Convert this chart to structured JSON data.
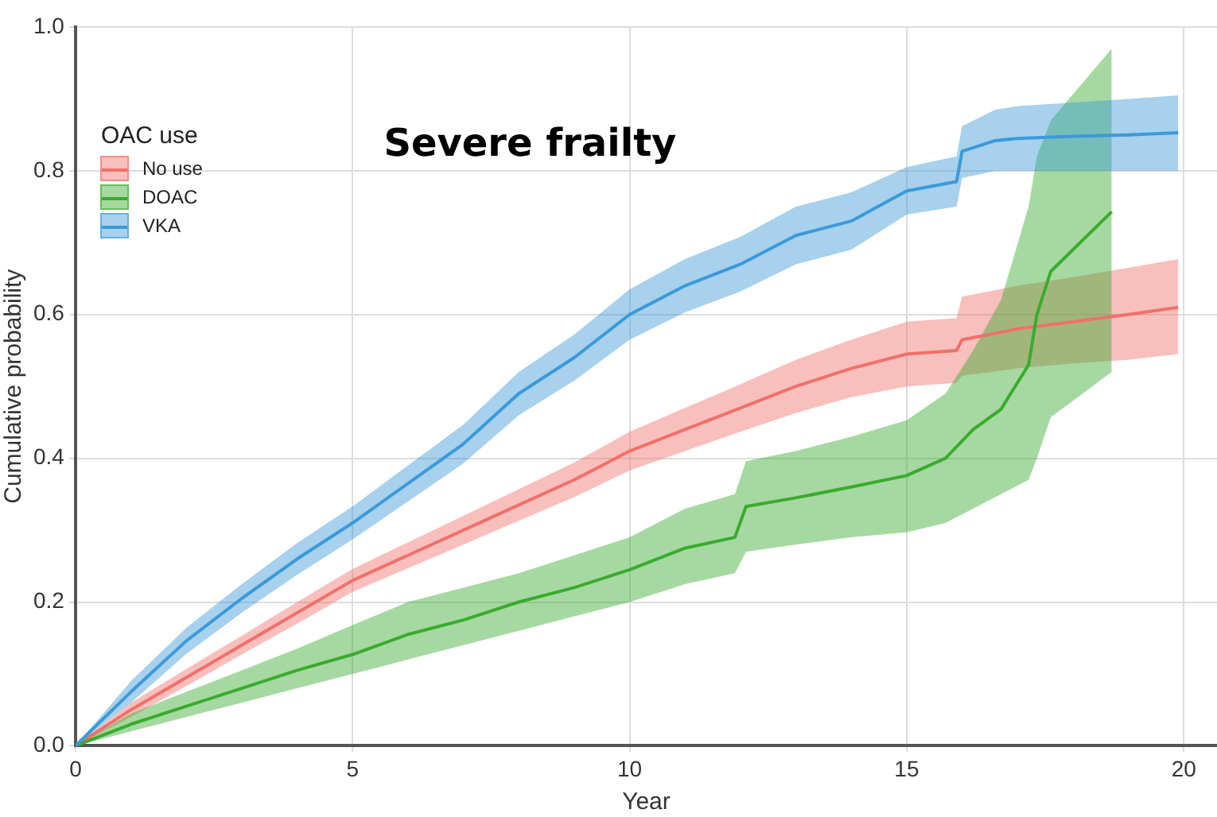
{
  "chart_data": {
    "type": "line",
    "xlabel": "Year",
    "ylabel": "Cumulative probability",
    "legend_title": "OAC use",
    "legend": "top left",
    "grid": true,
    "marker": "none",
    "line_style": "solid",
    "xlim": [
      0,
      20.6
    ],
    "xticks": [
      0,
      5,
      10,
      15,
      20
    ],
    "ylim": [
      0,
      1.0
    ],
    "yticks": [
      {
        "value": 0,
        "label": "0.0"
      },
      0.2,
      0.4,
      0.6,
      0.8,
      {
        "value": 1,
        "label": "1.0"
      }
    ],
    "annotations": [
      "Severe frailty"
    ],
    "series": [
      {
        "name": "No use",
        "color": "#f0706a",
        "x": [
          0,
          1,
          2,
          3,
          4,
          5,
          6,
          7,
          8,
          9,
          10,
          11,
          12,
          13,
          14,
          15,
          15.9,
          16,
          17,
          18,
          19,
          19.9
        ],
        "values": [
          0,
          0.05,
          0.095,
          0.14,
          0.185,
          0.23,
          0.265,
          0.3,
          0.335,
          0.37,
          0.41,
          0.44,
          0.47,
          0.5,
          0.525,
          0.545,
          0.55,
          0.565,
          0.58,
          0.59,
          0.6,
          0.61
        ],
        "lower": [
          0,
          0.04,
          0.083,
          0.127,
          0.17,
          0.214,
          0.247,
          0.28,
          0.313,
          0.346,
          0.383,
          0.41,
          0.437,
          0.463,
          0.485,
          0.5,
          0.505,
          0.515,
          0.525,
          0.532,
          0.537,
          0.545
        ],
        "upper": [
          0,
          0.06,
          0.107,
          0.153,
          0.2,
          0.246,
          0.283,
          0.32,
          0.357,
          0.394,
          0.437,
          0.47,
          0.503,
          0.537,
          0.565,
          0.59,
          0.595,
          0.625,
          0.64,
          0.652,
          0.665,
          0.677
        ]
      },
      {
        "name": "DOAC",
        "color": "#3aab2e",
        "x": [
          0,
          1,
          2,
          3,
          4,
          5,
          6,
          7,
          8,
          9,
          10,
          11,
          11.9,
          12.1,
          13,
          14,
          15,
          15.7,
          16.2,
          16.7,
          17.2,
          17.35,
          17.6,
          18.7
        ],
        "values": [
          0,
          0.03,
          0.055,
          0.08,
          0.105,
          0.127,
          0.155,
          0.175,
          0.2,
          0.22,
          0.245,
          0.275,
          0.29,
          0.333,
          0.345,
          0.36,
          0.376,
          0.4,
          0.44,
          0.468,
          0.53,
          0.6,
          0.66,
          0.743
        ],
        "lower": [
          0,
          0.02,
          0.04,
          0.06,
          0.08,
          0.1,
          0.12,
          0.14,
          0.16,
          0.18,
          0.2,
          0.225,
          0.24,
          0.27,
          0.28,
          0.29,
          0.297,
          0.31,
          0.33,
          0.35,
          0.37,
          0.4,
          0.457,
          0.52
        ],
        "upper": [
          0,
          0.045,
          0.075,
          0.105,
          0.135,
          0.168,
          0.2,
          0.22,
          0.24,
          0.265,
          0.29,
          0.33,
          0.35,
          0.396,
          0.41,
          0.43,
          0.453,
          0.49,
          0.55,
          0.62,
          0.75,
          0.82,
          0.87,
          0.97
        ]
      },
      {
        "name": "VKA",
        "color": "#3b9ad8",
        "x": [
          0,
          1,
          2,
          3,
          4,
          5,
          6,
          7,
          8,
          9,
          10,
          11,
          12,
          13,
          14,
          15,
          15.9,
          16,
          16.6,
          17,
          18,
          19,
          19.9
        ],
        "values": [
          0,
          0.075,
          0.146,
          0.205,
          0.26,
          0.31,
          0.365,
          0.42,
          0.49,
          0.54,
          0.6,
          0.64,
          0.67,
          0.71,
          0.73,
          0.772,
          0.785,
          0.827,
          0.842,
          0.845,
          0.848,
          0.85,
          0.853
        ],
        "lower": [
          0,
          0.06,
          0.128,
          0.185,
          0.238,
          0.287,
          0.34,
          0.393,
          0.46,
          0.508,
          0.565,
          0.603,
          0.632,
          0.67,
          0.69,
          0.739,
          0.75,
          0.79,
          0.8,
          0.8,
          0.8,
          0.8,
          0.8
        ],
        "upper": [
          0,
          0.09,
          0.164,
          0.225,
          0.282,
          0.333,
          0.39,
          0.447,
          0.52,
          0.572,
          0.635,
          0.677,
          0.708,
          0.75,
          0.77,
          0.805,
          0.82,
          0.862,
          0.885,
          0.89,
          0.895,
          0.9,
          0.905
        ]
      }
    ]
  }
}
